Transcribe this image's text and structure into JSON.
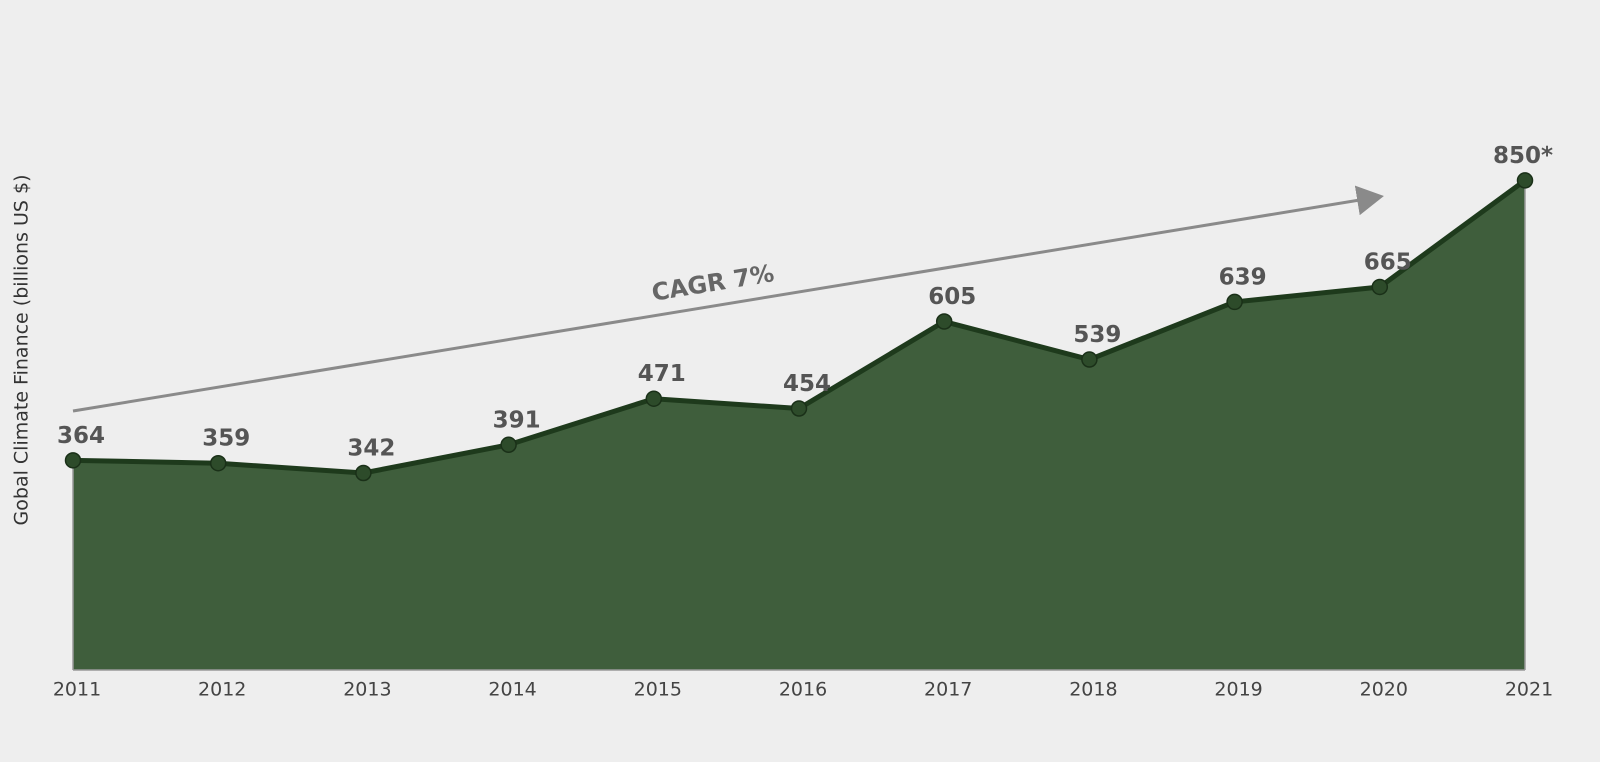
{
  "chart_data": {
    "type": "area",
    "y_label": "Gobal Climate Finance (billions US $)",
    "categories": [
      "2011",
      "2012",
      "2013",
      "2014",
      "2015",
      "2016",
      "2017",
      "2018",
      "2019",
      "2020",
      "2021"
    ],
    "values": [
      364,
      359,
      342,
      391,
      471,
      454,
      605,
      539,
      639,
      665,
      850
    ],
    "value_labels": [
      "364",
      "359",
      "342",
      "391",
      "471",
      "454",
      "605",
      "539",
      "639",
      "665",
      "850*"
    ],
    "color": "#3f5e3c",
    "line_color": "#1e3a1c",
    "ylim": [
      0,
      1000
    ],
    "annotation": "CAGR 7%"
  }
}
